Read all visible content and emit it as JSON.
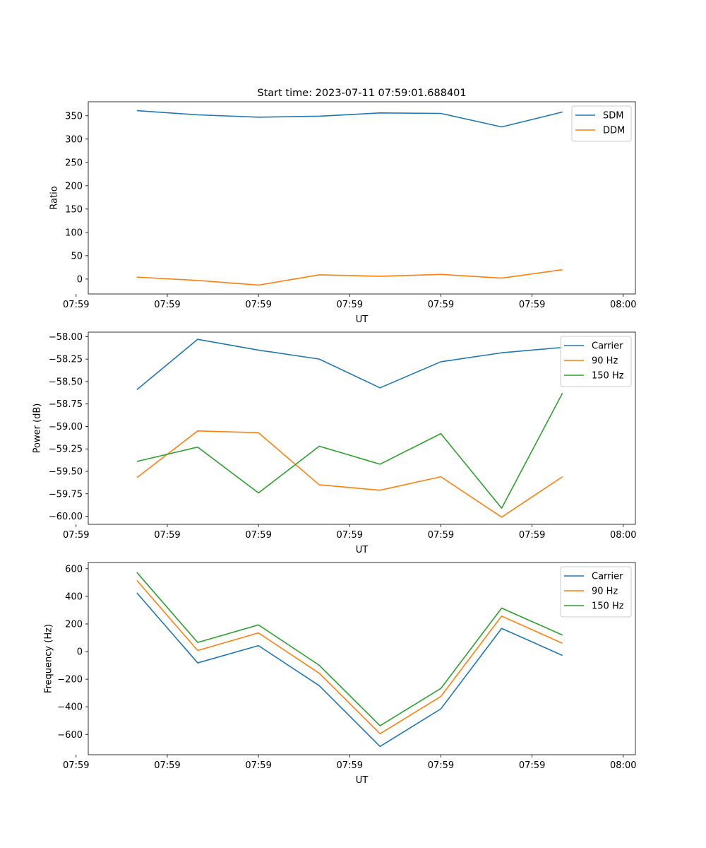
{
  "figure_title": "Start time: 2023-07-11 07:59:01.688401",
  "colors": {
    "blue": "#1f77b4",
    "orange": "#ff7f0e",
    "green": "#2ca02c"
  },
  "chart_data": [
    {
      "type": "line",
      "title": "Start time: 2023-07-11 07:59:01.688401",
      "xlabel": "UT",
      "ylabel": "Ratio",
      "x_index": [
        1,
        2,
        3,
        4,
        5,
        6,
        7,
        8
      ],
      "xlim": [
        0.2,
        9.2
      ],
      "xticks": [
        0,
        1.5,
        3,
        4.5,
        6,
        7.5,
        9
      ],
      "xtick_labels": [
        "07:59",
        "07:59",
        "07:59",
        "07:59",
        "07:59",
        "07:59",
        "08:00"
      ],
      "ylim": [
        -32,
        380
      ],
      "yticks": [
        0,
        50,
        100,
        150,
        200,
        250,
        300,
        350
      ],
      "ytick_labels": [
        "0",
        "50",
        "100",
        "150",
        "200",
        "250",
        "300",
        "350"
      ],
      "legend_position": "top-right",
      "series": [
        {
          "name": "SDM",
          "color": "#1f77b4",
          "values": [
            361,
            352,
            347,
            349,
            356,
            355,
            326,
            358
          ]
        },
        {
          "name": "DDM",
          "color": "#ff7f0e",
          "values": [
            4,
            -3,
            -13,
            9,
            6,
            10,
            2,
            20
          ]
        }
      ]
    },
    {
      "type": "line",
      "title": "",
      "xlabel": "UT",
      "ylabel": "Power (dB)",
      "x_index": [
        1,
        2,
        3,
        4,
        5,
        6,
        7,
        8
      ],
      "xlim": [
        0.2,
        9.2
      ],
      "xticks": [
        0,
        1.5,
        3,
        4.5,
        6,
        7.5,
        9
      ],
      "xtick_labels": [
        "07:59",
        "07:59",
        "07:59",
        "07:59",
        "07:59",
        "07:59",
        "08:00"
      ],
      "ylim": [
        -60.09,
        -57.95
      ],
      "yticks": [
        -60.0,
        -59.75,
        -59.5,
        -59.25,
        -59.0,
        -58.75,
        -58.5,
        -58.25,
        -58.0
      ],
      "ytick_labels": [
        "−60.00",
        "−59.75",
        "−59.50",
        "−59.25",
        "−59.00",
        "−58.75",
        "−58.50",
        "−58.25",
        "−58.00"
      ],
      "legend_position": "top-right",
      "series": [
        {
          "name": "Carrier",
          "color": "#1f77b4",
          "values": [
            -58.59,
            -58.03,
            -58.15,
            -58.25,
            -58.57,
            -58.28,
            -58.18,
            -58.12
          ]
        },
        {
          "name": "90 Hz",
          "color": "#ff7f0e",
          "values": [
            -59.57,
            -59.05,
            -59.07,
            -59.65,
            -59.71,
            -59.56,
            -60.01,
            -59.56
          ]
        },
        {
          "name": "150 Hz",
          "color": "#2ca02c",
          "values": [
            -59.39,
            -59.23,
            -59.74,
            -59.22,
            -59.42,
            -59.08,
            -59.91,
            -58.63
          ]
        }
      ]
    },
    {
      "type": "line",
      "title": "",
      "xlabel": "UT",
      "ylabel": "Frequency (Hz)",
      "x_index": [
        1,
        2,
        3,
        4,
        5,
        6,
        7,
        8
      ],
      "xlim": [
        0.2,
        9.2
      ],
      "xticks": [
        0,
        1.5,
        3,
        4.5,
        6,
        7.5,
        9
      ],
      "xtick_labels": [
        "07:59",
        "07:59",
        "07:59",
        "07:59",
        "07:59",
        "07:59",
        "08:00"
      ],
      "ylim": [
        -747,
        645
      ],
      "yticks": [
        -600,
        -400,
        -200,
        0,
        200,
        400,
        600
      ],
      "ytick_labels": [
        "−600",
        "−400",
        "−200",
        "0",
        "200",
        "400",
        "600"
      ],
      "legend_position": "top-right",
      "series": [
        {
          "name": "Carrier",
          "color": "#1f77b4",
          "values": [
            425,
            -82,
            43,
            -247,
            -687,
            -415,
            168,
            -28
          ]
        },
        {
          "name": "90 Hz",
          "color": "#ff7f0e",
          "values": [
            515,
            8,
            135,
            -157,
            -595,
            -325,
            257,
            60
          ]
        },
        {
          "name": "150 Hz",
          "color": "#2ca02c",
          "values": [
            573,
            66,
            193,
            -99,
            -537,
            -267,
            315,
            120
          ]
        }
      ]
    }
  ]
}
